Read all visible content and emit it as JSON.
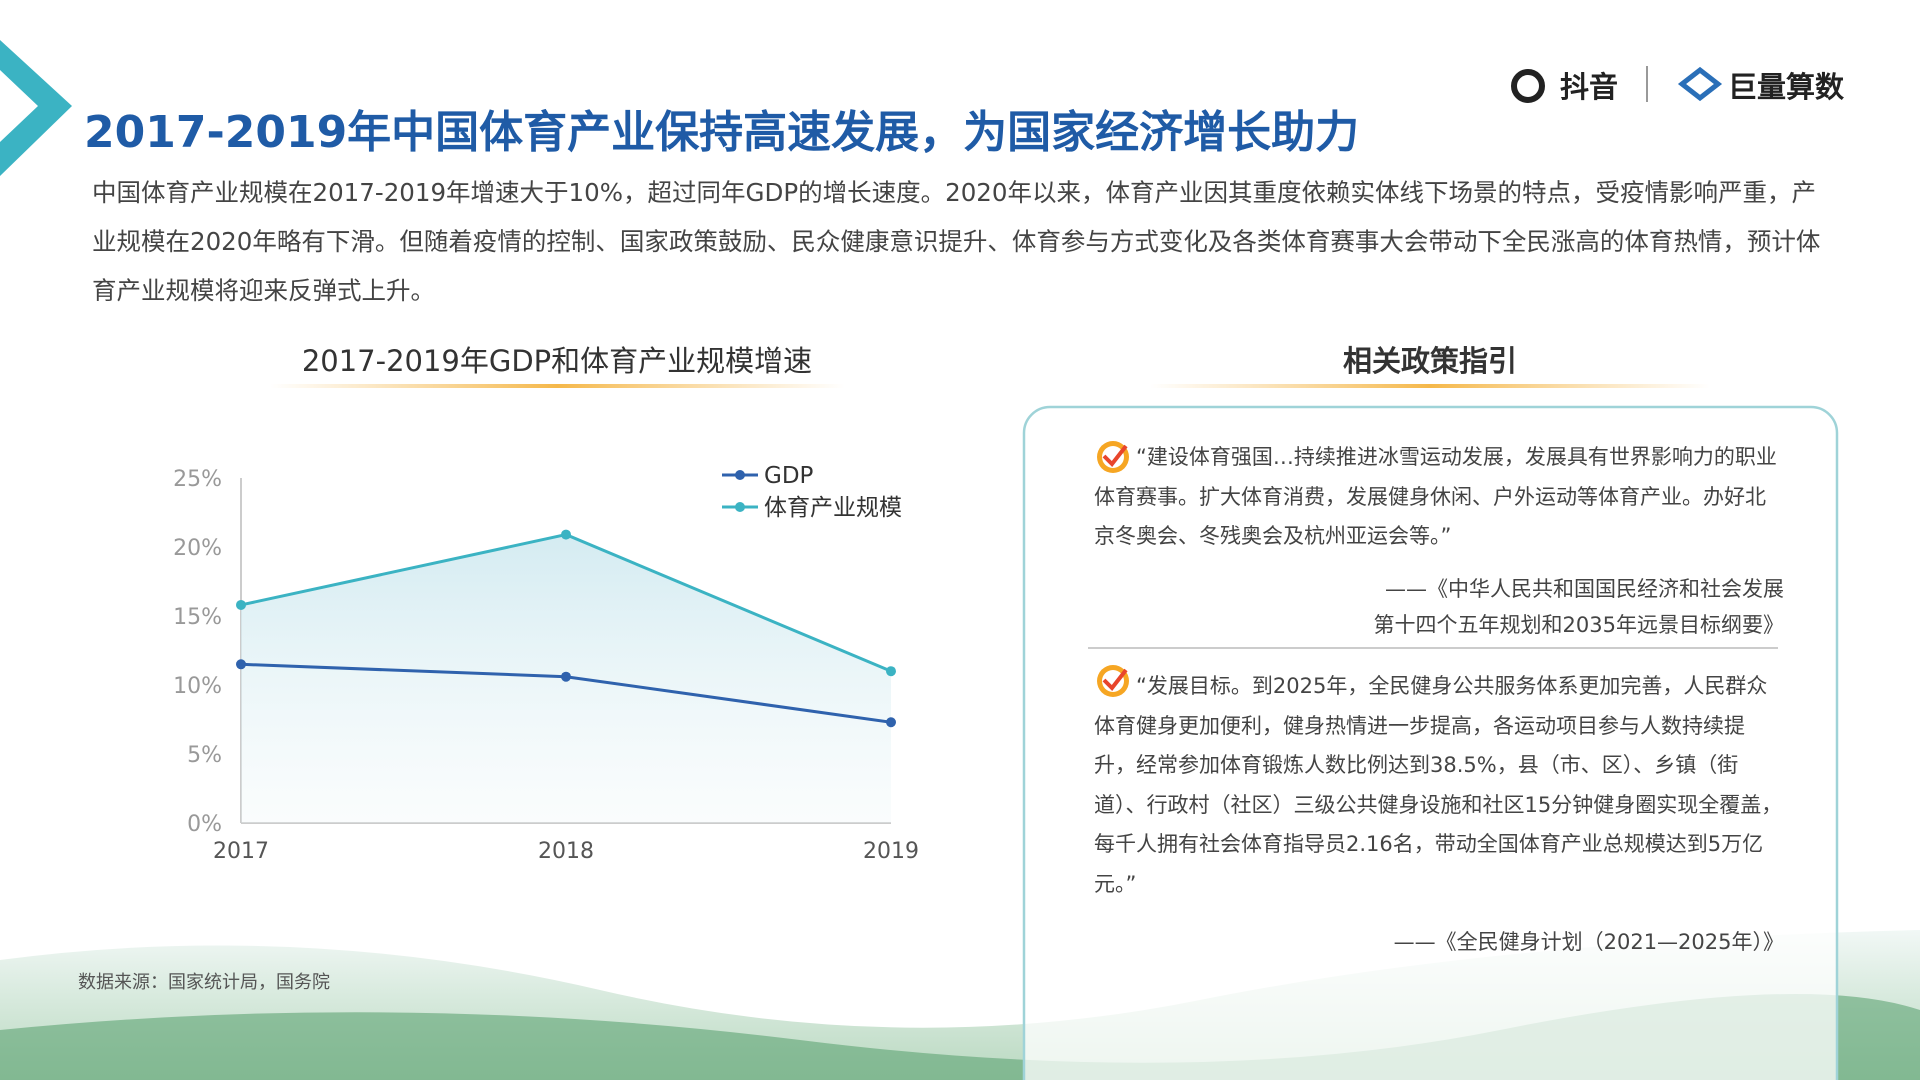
{
  "header": {
    "title": "2017-2019年中国体育产业保持高速发展，为国家经济增长助力",
    "logo_left": "抖音",
    "logo_right": "巨量算数"
  },
  "intro": "中国体育产业规模在2017-2019年增速大于10%，超过同年GDP的增长速度。2020年以来，体育产业因其重度依赖实体线下场景的特点，受疫情影响严重，产业规模在2020年略有下滑。但随着疫情的控制、国家政策鼓励、民众健康意识提升、体育参与方式变化及各类体育赛事大会带动下全民涨高的体育热情，预计体育产业规模将迎来反弹式上升。",
  "chart_data": {
    "type": "line",
    "title": "2017-2019年GDP和体育产业规模增速",
    "categories": [
      "2017",
      "2018",
      "2019"
    ],
    "series": [
      {
        "name": "GDP",
        "color": "#2f62ad",
        "values": [
          11.5,
          10.6,
          7.3
        ]
      },
      {
        "name": "体育产业规模",
        "color": "#3bb3c3",
        "values": [
          15.8,
          20.9,
          11.0
        ]
      }
    ],
    "ylim": [
      0,
      25
    ],
    "yticks": [
      {
        "value": 0,
        "label": "0%"
      },
      {
        "value": 5,
        "label": "5%"
      },
      {
        "value": 10,
        "label": "10%"
      },
      {
        "value": 15,
        "label": "15%"
      },
      {
        "value": 20,
        "label": "20%"
      },
      {
        "value": 25,
        "label": "25%"
      }
    ],
    "legend": "top-right",
    "area": true
  },
  "policy": {
    "title": "相关政策指引",
    "items": [
      {
        "quote": "“建设体育强国…持续推进冰雪运动发展，发展具有世界影响力的职业体育赛事。扩大体育消费，发展健身休闲、户外运动等体育产业。办好北京冬奥会、冬残奥会及杭州亚运会等。”",
        "source": [
          "——《中华人民共和国国民经济和社会发展",
          "第十四个五年规划和2035年远景目标纲要》"
        ]
      },
      {
        "quote": "“发展目标。到2025年，全民健身公共服务体系更加完善，人民群众体育健身更加便利，健身热情进一步提高，各运动项目参与人数持续提升，经常参加体育锻炼人数比例达到38.5%，县（市、区）、乡镇（街道）、行政村（社区）三级公共健身设施和社区15分钟健身圈实现全覆盖，每千人拥有社会体育指导员2.16名，带动全国体育产业总规模达到5万亿元。”",
        "source": [
          "——《全民健身计划（2021—2025年）》"
        ]
      }
    ]
  },
  "footer": "数据来源：国家统计局，国务院"
}
